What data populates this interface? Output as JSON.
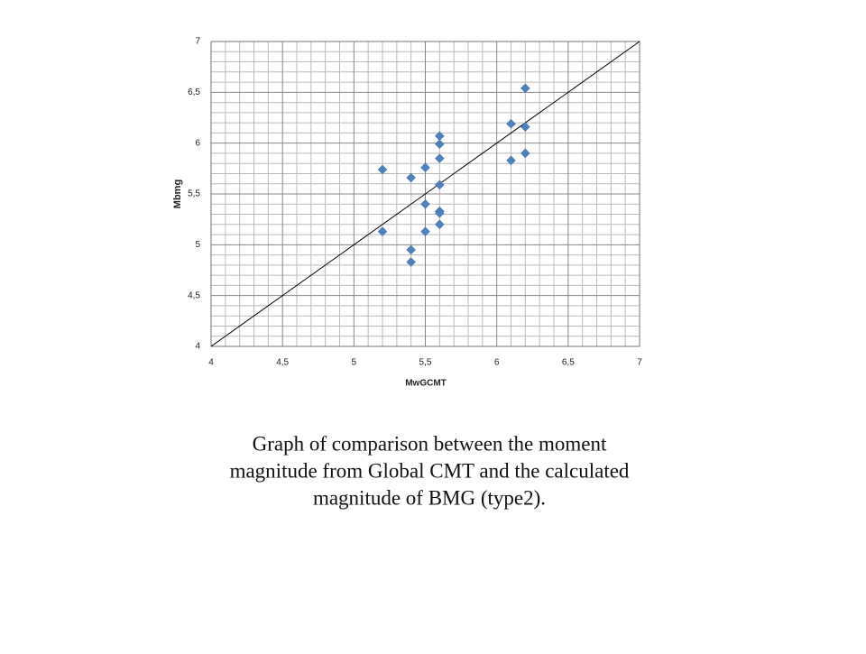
{
  "chart_data": {
    "type": "scatter",
    "xlabel": "MwGCMT",
    "ylabel": "Mbmg",
    "xlim": [
      4,
      7
    ],
    "ylim": [
      4,
      7
    ],
    "xticks": [
      4,
      {
        "value": 4.5,
        "label": "4,5"
      },
      5,
      {
        "value": 5.5,
        "label": "5,5"
      },
      6,
      {
        "value": 6.5,
        "label": "6,5"
      },
      7
    ],
    "yticks": [
      4,
      {
        "value": 4.5,
        "label": "4,5"
      },
      5,
      {
        "value": 5.5,
        "label": "5,5"
      },
      6,
      {
        "value": 6.5,
        "label": "6,5"
      },
      7
    ],
    "grid": true,
    "color": "#4f81bd",
    "x": [
      6.2,
      6.1,
      6.2,
      5.6,
      5.6,
      5.6,
      6.2,
      6.1,
      5.2,
      5.5,
      5.4,
      5.6,
      5.5,
      5.6,
      5.6,
      5.6,
      5.2,
      5.5,
      5.4,
      5.4
    ],
    "values": [
      6.54,
      6.19,
      6.16,
      6.07,
      5.99,
      5.85,
      5.9,
      5.83,
      5.74,
      5.76,
      5.66,
      5.59,
      5.4,
      5.33,
      5.31,
      5.2,
      5.13,
      5.13,
      4.95,
      4.83
    ]
  },
  "caption": [
    "Graph of comparison between the moment",
    "magnitude from Global CMT and the calculated",
    "magnitude of BMG (type2)."
  ]
}
